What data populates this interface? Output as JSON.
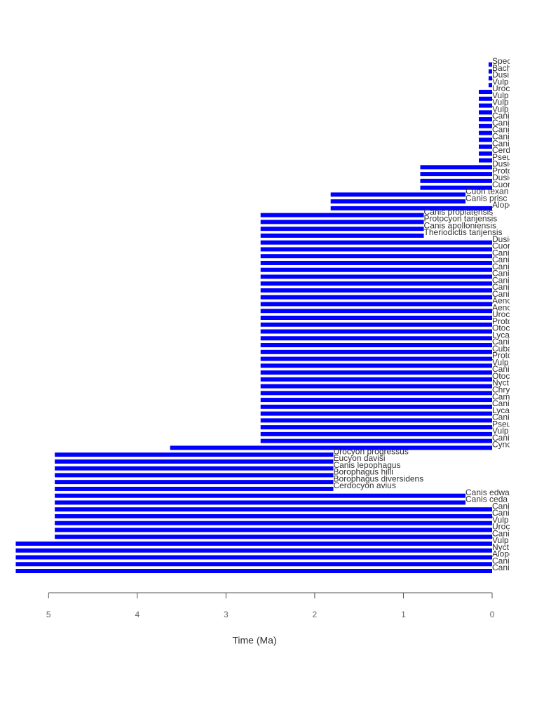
{
  "chart_data": {
    "type": "range_bar",
    "x_label": "Time (Ma)",
    "color": "#0000ff",
    "xlim": [
      5.5,
      -0.2
    ],
    "xticks": [
      5,
      4,
      3,
      2,
      1,
      0
    ],
    "categories": [
      "Spec",
      "Bach",
      "Dusi",
      "Vulp",
      "Uroc",
      "Vulp",
      "Vulp",
      "Vulp",
      "Canis",
      "Canis",
      "Canis",
      "Canis",
      "Canis",
      "Cerd",
      "Pseu",
      "Dusic",
      "Proto",
      "Dusic",
      "Cuon",
      "Cuon texan",
      "Canis prisc",
      "Alope",
      "Canis proplatensis",
      "Protocyon tarijensis",
      "Canis apolloniensis",
      "Theriodictis tarijensis",
      "Dusic",
      "Cuon",
      "Canis",
      "Canis",
      "Canis",
      "Canis",
      "Canis",
      "Canis",
      "Canis",
      "Aeno",
      "Aeno",
      "Uroc",
      "Proto",
      "Otoc",
      "Lyca",
      "Canic",
      "Cuba",
      "Proto",
      "Vulp",
      "Cani",
      "Otoc",
      "Nyct",
      "Chry",
      "Cam",
      "Cani",
      "Lyca",
      "Cani",
      "Pseu",
      "Vulp",
      "Cani",
      "Cyno",
      "Urocyon progressus",
      "Eucyon davisi",
      "Canis lepophagus",
      "Borophagus hilli",
      "Borophagus diversidens",
      "Cerdocyon avius",
      "Canis edwa",
      "Canis ceda",
      "Canis",
      "Canis",
      "Vulp",
      "Uroc",
      "Cani",
      "Vulp",
      "Nyct",
      "Alope",
      "Cani",
      "Cani"
    ],
    "start": [
      0.04,
      0.04,
      0.04,
      0.04,
      0.15,
      0.15,
      0.15,
      0.15,
      0.15,
      0.15,
      0.15,
      0.15,
      0.15,
      0.15,
      0.15,
      0.81,
      0.81,
      0.81,
      0.81,
      1.82,
      1.82,
      1.82,
      2.61,
      2.61,
      2.61,
      2.61,
      2.61,
      2.61,
      2.61,
      2.61,
      2.61,
      2.61,
      2.61,
      2.61,
      2.61,
      2.61,
      2.61,
      2.61,
      2.61,
      2.61,
      2.61,
      2.61,
      2.61,
      2.61,
      2.61,
      2.61,
      2.61,
      2.61,
      2.61,
      2.61,
      2.61,
      2.61,
      2.61,
      2.61,
      2.61,
      2.61,
      3.63,
      4.93,
      4.93,
      4.93,
      4.93,
      4.93,
      4.93,
      4.93,
      4.93,
      4.93,
      4.93,
      4.93,
      4.93,
      4.93,
      5.37,
      5.37,
      5.37,
      5.37,
      5.37
    ],
    "end": [
      0,
      0,
      0,
      0,
      0,
      0,
      0,
      0,
      0,
      0,
      0,
      0,
      0,
      0,
      0,
      0,
      0,
      0,
      0,
      0.3,
      0.3,
      0,
      0.77,
      0.77,
      0.77,
      0.77,
      0,
      0,
      0,
      0,
      0,
      0,
      0,
      0,
      0,
      0,
      0,
      0,
      0,
      0,
      0,
      0,
      0,
      0,
      0,
      0,
      0,
      0,
      0,
      0,
      0,
      0,
      0,
      0,
      0,
      0,
      0,
      1.79,
      1.79,
      1.79,
      1.79,
      1.79,
      1.79,
      0.3,
      0.3,
      0,
      0,
      0,
      0,
      0,
      0,
      0,
      0,
      0,
      0
    ]
  }
}
